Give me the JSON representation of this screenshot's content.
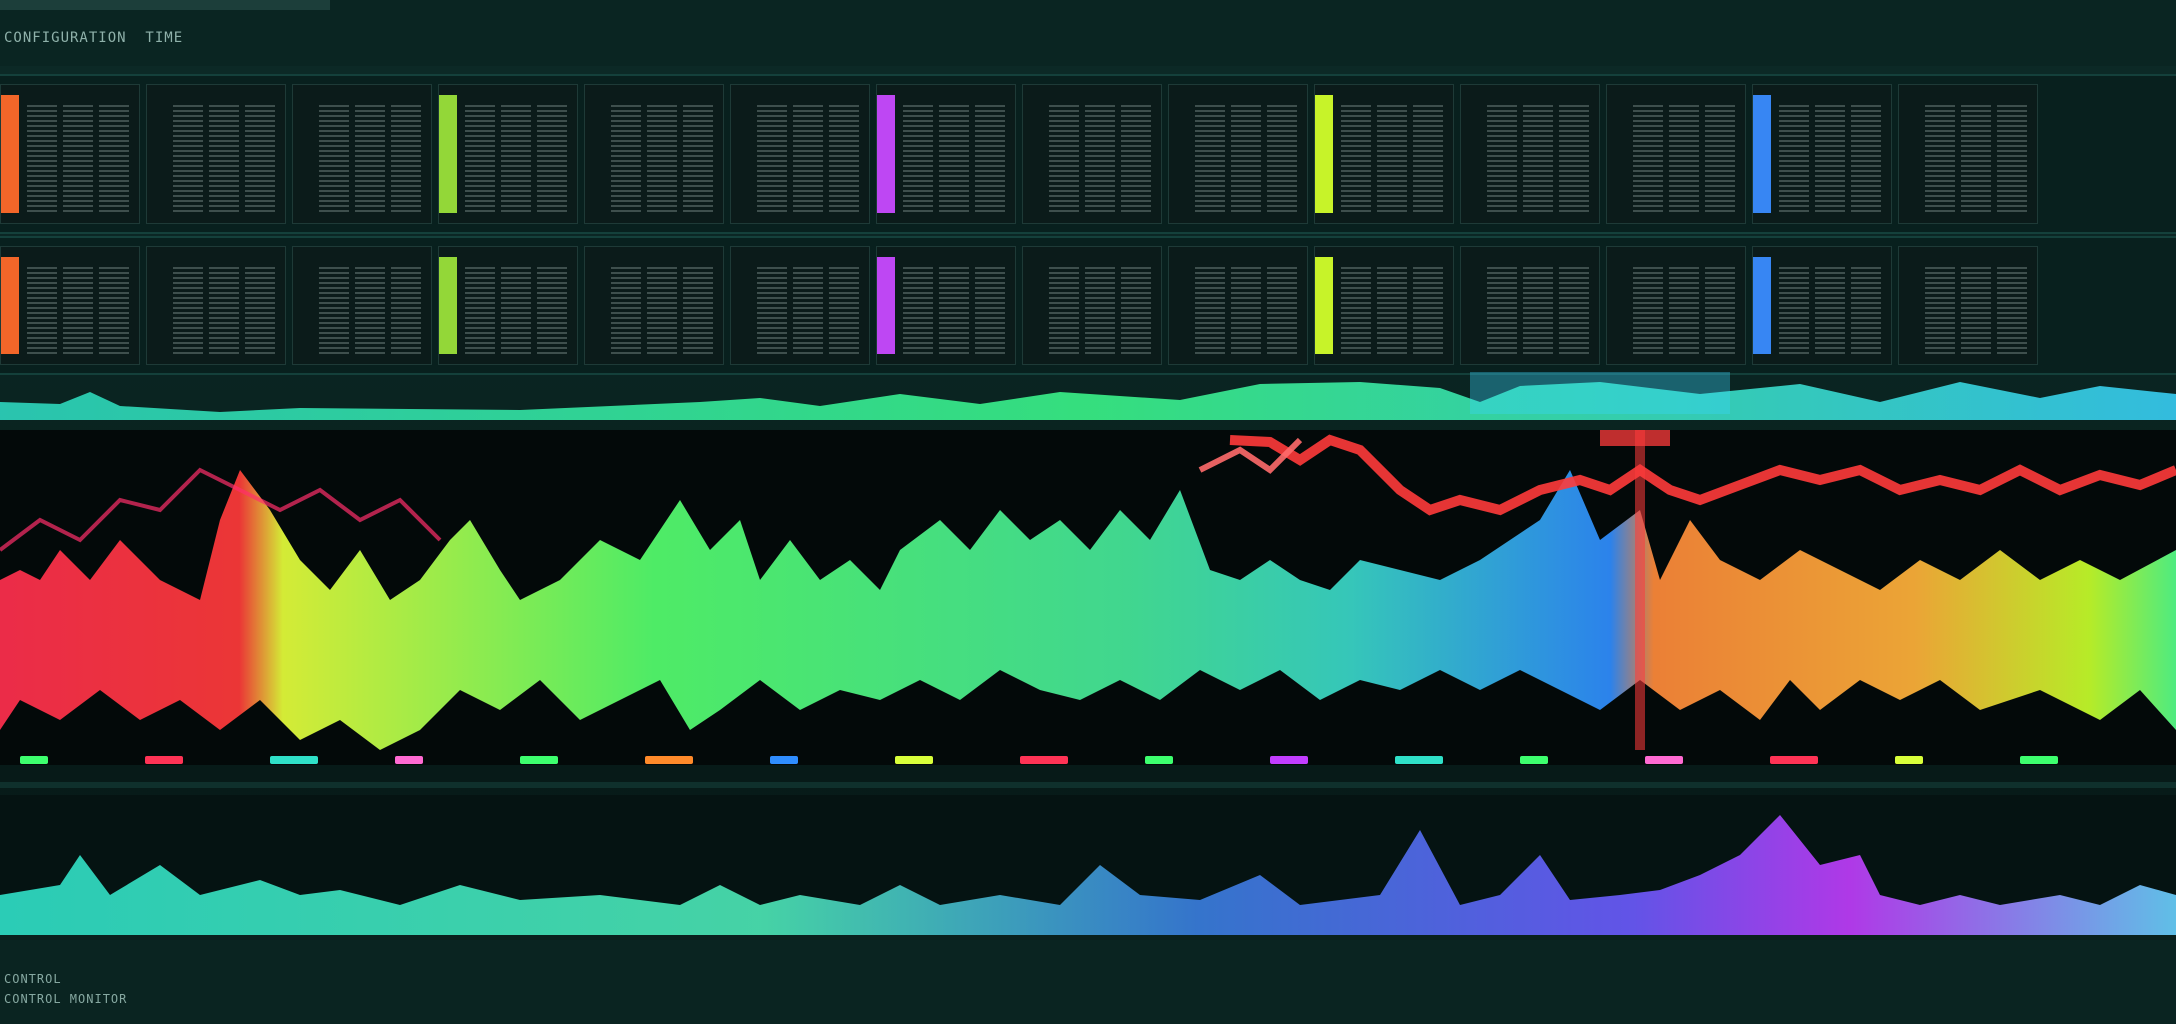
{
  "window": {
    "title": "CONFIGURATION  TIME"
  },
  "footer": {
    "line1": "CONTROL",
    "line2": "CONTROL MONITOR"
  },
  "accents": {
    "red": "#ff3355",
    "orange": "#ff8a2a",
    "yellow": "#d9ff3a",
    "green": "#3dff6e",
    "teal": "#2fe0c8",
    "blue": "#2f8dff",
    "violet": "#c23dff"
  },
  "panel_strip_colors": [
    "#ff6a2a",
    "#2dff7a",
    "#3a8cff",
    "#9be13a",
    "#2dff3a",
    "#ff4a4a",
    "#c84aff",
    "#ff5555",
    "#2dff7a",
    "#d2ff2a"
  ],
  "icons": [
    "grid-icon",
    "waveform-icon"
  ]
}
